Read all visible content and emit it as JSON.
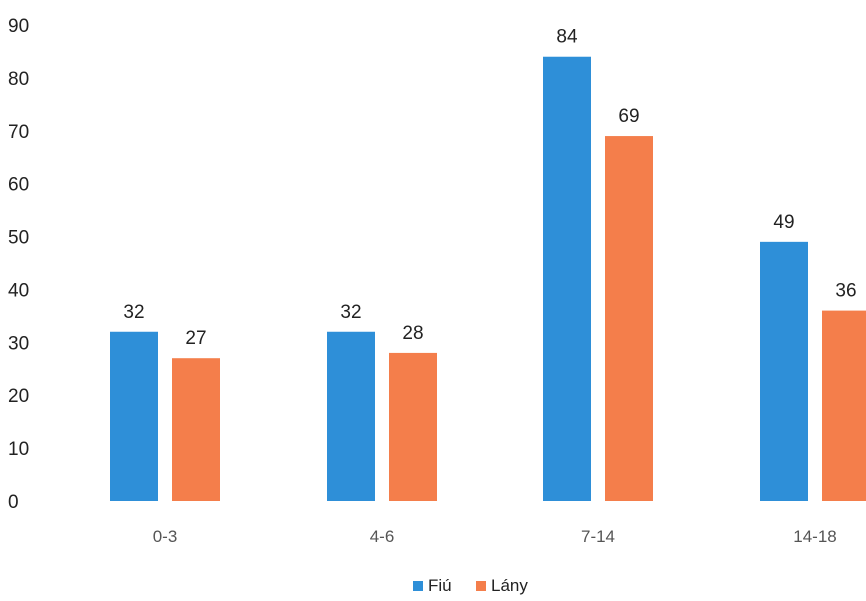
{
  "chart_data": {
    "type": "bar",
    "categories": [
      "0-3",
      "4-6",
      "7-14",
      "14-18"
    ],
    "series": [
      {
        "name": "Fiú",
        "values": [
          32,
          32,
          84,
          49
        ],
        "color": "#2E8FD8"
      },
      {
        "name": "Lány",
        "values": [
          27,
          28,
          69,
          36
        ],
        "color": "#F47E4B"
      }
    ],
    "ylim": [
      0,
      90
    ],
    "yticks": [
      0,
      10,
      20,
      30,
      40,
      50,
      60,
      70,
      80,
      90
    ],
    "grid": false,
    "legend": "bottom-center",
    "data_labels": true
  }
}
